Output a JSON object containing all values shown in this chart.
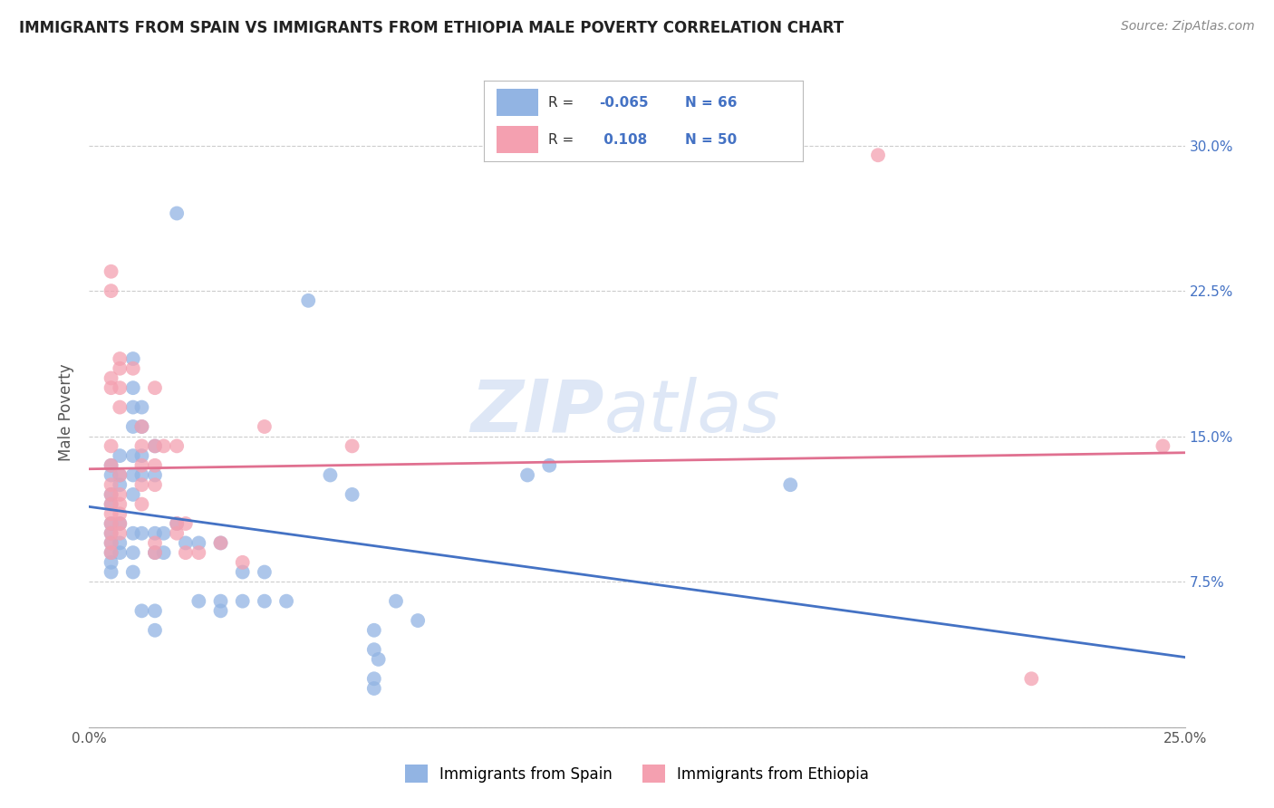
{
  "title": "IMMIGRANTS FROM SPAIN VS IMMIGRANTS FROM ETHIOPIA MALE POVERTY CORRELATION CHART",
  "source": "Source: ZipAtlas.com",
  "xlabel_spain": "Immigrants from Spain",
  "xlabel_ethiopia": "Immigrants from Ethiopia",
  "ylabel": "Male Poverty",
  "spain_color": "#92b4e3",
  "ethiopia_color": "#f4a0b0",
  "spain_line_color": "#4472c4",
  "ethiopia_line_color": "#e07090",
  "r_spain": -0.065,
  "n_spain": 66,
  "r_ethiopia": 0.108,
  "n_ethiopia": 50,
  "xlim": [
    0.0,
    0.25
  ],
  "ylim": [
    0.0,
    0.325
  ],
  "xticks": [
    0.0,
    0.05,
    0.1,
    0.15,
    0.2,
    0.25
  ],
  "xticklabels": [
    "0.0%",
    "",
    "",
    "",
    "",
    "25.0%"
  ],
  "yticks": [
    0.0,
    0.075,
    0.15,
    0.225,
    0.3
  ],
  "yticklabels": [
    "",
    "7.5%",
    "15.0%",
    "22.5%",
    "30.0%"
  ],
  "watermark_zip": "ZIP",
  "watermark_atlas": "atlas",
  "background_color": "#ffffff",
  "grid_color": "#cccccc",
  "spain_scatter": [
    [
      0.005,
      0.135
    ],
    [
      0.005,
      0.12
    ],
    [
      0.005,
      0.13
    ],
    [
      0.005,
      0.115
    ],
    [
      0.005,
      0.105
    ],
    [
      0.005,
      0.1
    ],
    [
      0.005,
      0.095
    ],
    [
      0.005,
      0.09
    ],
    [
      0.005,
      0.085
    ],
    [
      0.005,
      0.08
    ],
    [
      0.007,
      0.14
    ],
    [
      0.007,
      0.13
    ],
    [
      0.007,
      0.125
    ],
    [
      0.007,
      0.105
    ],
    [
      0.007,
      0.095
    ],
    [
      0.007,
      0.09
    ],
    [
      0.01,
      0.19
    ],
    [
      0.01,
      0.175
    ],
    [
      0.01,
      0.165
    ],
    [
      0.01,
      0.155
    ],
    [
      0.01,
      0.14
    ],
    [
      0.01,
      0.13
    ],
    [
      0.01,
      0.12
    ],
    [
      0.01,
      0.1
    ],
    [
      0.01,
      0.09
    ],
    [
      0.01,
      0.08
    ],
    [
      0.012,
      0.165
    ],
    [
      0.012,
      0.155
    ],
    [
      0.012,
      0.14
    ],
    [
      0.012,
      0.13
    ],
    [
      0.012,
      0.1
    ],
    [
      0.012,
      0.06
    ],
    [
      0.015,
      0.145
    ],
    [
      0.015,
      0.13
    ],
    [
      0.015,
      0.1
    ],
    [
      0.015,
      0.09
    ],
    [
      0.015,
      0.06
    ],
    [
      0.015,
      0.05
    ],
    [
      0.017,
      0.1
    ],
    [
      0.017,
      0.09
    ],
    [
      0.02,
      0.265
    ],
    [
      0.02,
      0.105
    ],
    [
      0.022,
      0.095
    ],
    [
      0.025,
      0.095
    ],
    [
      0.025,
      0.065
    ],
    [
      0.03,
      0.095
    ],
    [
      0.03,
      0.065
    ],
    [
      0.03,
      0.06
    ],
    [
      0.035,
      0.08
    ],
    [
      0.035,
      0.065
    ],
    [
      0.04,
      0.08
    ],
    [
      0.04,
      0.065
    ],
    [
      0.045,
      0.065
    ],
    [
      0.05,
      0.22
    ],
    [
      0.055,
      0.13
    ],
    [
      0.06,
      0.12
    ],
    [
      0.065,
      0.05
    ],
    [
      0.07,
      0.065
    ],
    [
      0.075,
      0.055
    ],
    [
      0.1,
      0.13
    ],
    [
      0.105,
      0.135
    ],
    [
      0.16,
      0.125
    ],
    [
      0.065,
      0.04
    ],
    [
      0.065,
      0.025
    ],
    [
      0.065,
      0.02
    ],
    [
      0.066,
      0.035
    ]
  ],
  "ethiopia_scatter": [
    [
      0.005,
      0.235
    ],
    [
      0.005,
      0.225
    ],
    [
      0.005,
      0.18
    ],
    [
      0.005,
      0.175
    ],
    [
      0.005,
      0.145
    ],
    [
      0.005,
      0.135
    ],
    [
      0.005,
      0.125
    ],
    [
      0.005,
      0.12
    ],
    [
      0.005,
      0.115
    ],
    [
      0.005,
      0.11
    ],
    [
      0.005,
      0.105
    ],
    [
      0.005,
      0.1
    ],
    [
      0.005,
      0.095
    ],
    [
      0.005,
      0.09
    ],
    [
      0.007,
      0.19
    ],
    [
      0.007,
      0.185
    ],
    [
      0.007,
      0.175
    ],
    [
      0.007,
      0.165
    ],
    [
      0.007,
      0.13
    ],
    [
      0.007,
      0.12
    ],
    [
      0.007,
      0.115
    ],
    [
      0.007,
      0.11
    ],
    [
      0.007,
      0.105
    ],
    [
      0.007,
      0.1
    ],
    [
      0.01,
      0.185
    ],
    [
      0.012,
      0.155
    ],
    [
      0.012,
      0.145
    ],
    [
      0.012,
      0.135
    ],
    [
      0.012,
      0.125
    ],
    [
      0.012,
      0.115
    ],
    [
      0.015,
      0.175
    ],
    [
      0.015,
      0.145
    ],
    [
      0.015,
      0.135
    ],
    [
      0.015,
      0.125
    ],
    [
      0.015,
      0.095
    ],
    [
      0.015,
      0.09
    ],
    [
      0.017,
      0.145
    ],
    [
      0.02,
      0.145
    ],
    [
      0.02,
      0.105
    ],
    [
      0.02,
      0.1
    ],
    [
      0.022,
      0.105
    ],
    [
      0.022,
      0.09
    ],
    [
      0.025,
      0.09
    ],
    [
      0.03,
      0.095
    ],
    [
      0.035,
      0.085
    ],
    [
      0.04,
      0.155
    ],
    [
      0.06,
      0.145
    ],
    [
      0.18,
      0.295
    ],
    [
      0.215,
      0.025
    ],
    [
      0.245,
      0.145
    ]
  ]
}
